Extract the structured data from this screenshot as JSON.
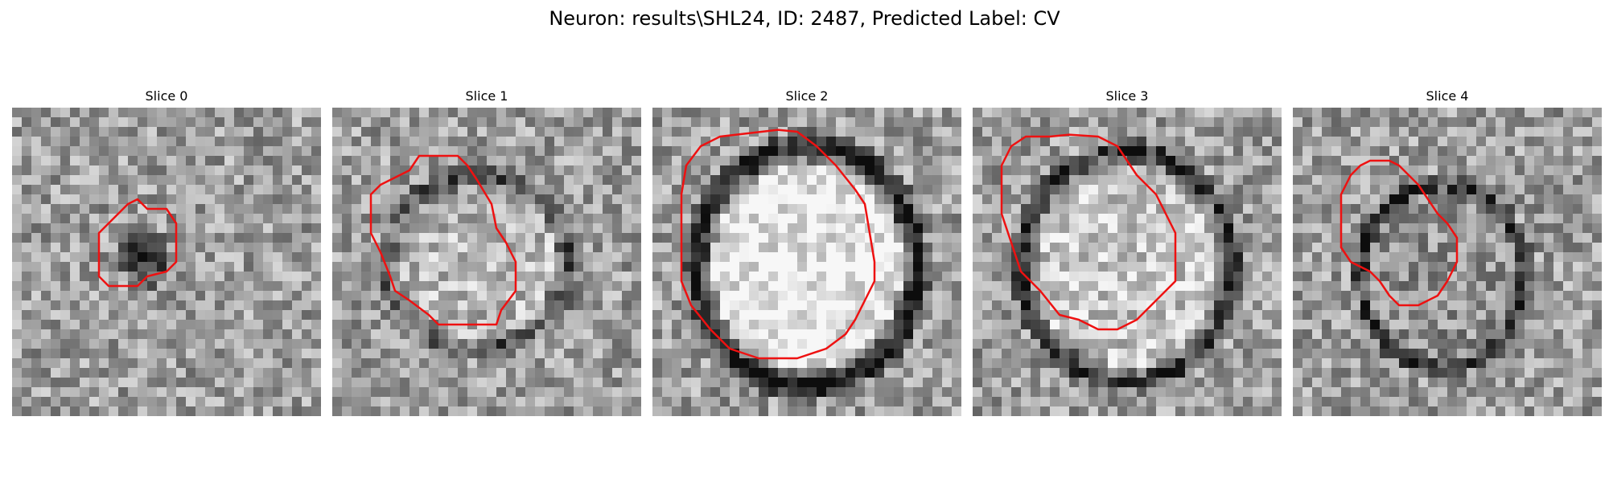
{
  "figure": {
    "title": "Neuron: results\\SHL24, ID: 2487, Predicted Label: CV"
  },
  "panels": [
    {
      "title": "Slice 0",
      "contour_color": "#ee1111"
    },
    {
      "title": "Slice 1",
      "contour_color": "#ee1111"
    },
    {
      "title": "Slice 2",
      "contour_color": "#ee1111"
    },
    {
      "title": "Slice 3",
      "contour_color": "#ee1111"
    },
    {
      "title": "Slice 4",
      "contour_color": "#ee1111"
    }
  ],
  "colormap": "gray"
}
